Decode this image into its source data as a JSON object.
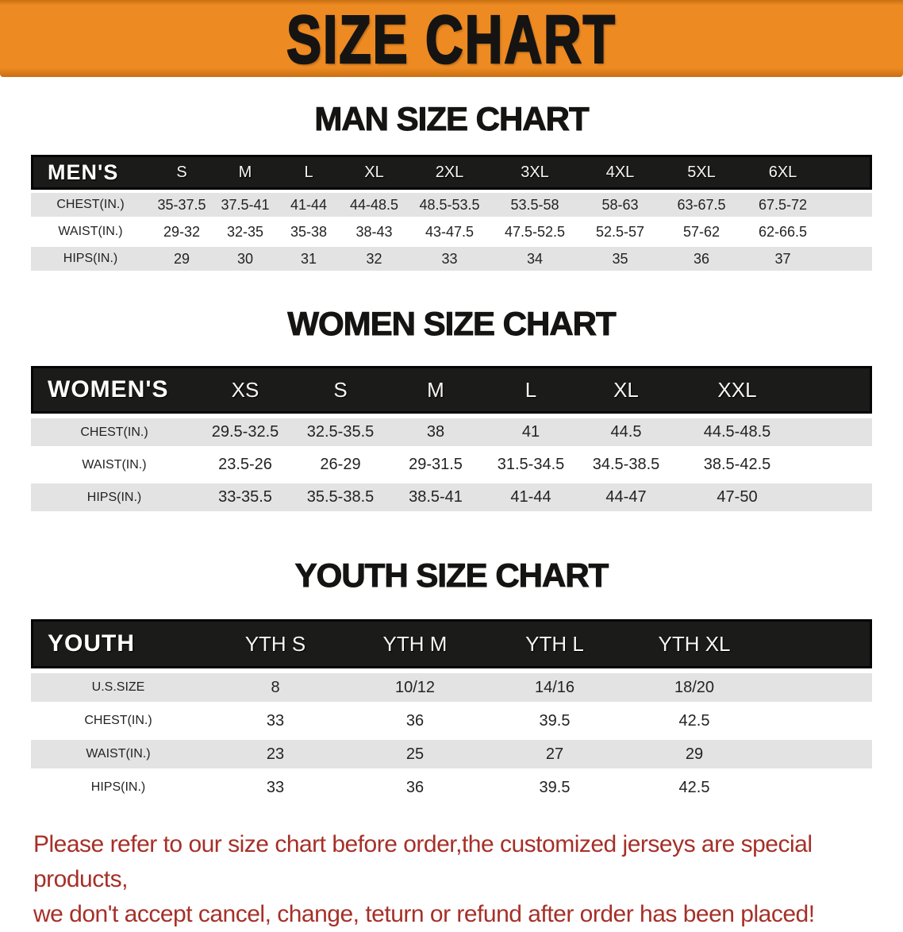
{
  "banner": {
    "title": "SIZE CHART"
  },
  "colors": {
    "banner_orange": "#ee8a22",
    "header_bar_black": "#1b1b19",
    "row_gray": "#e3e3e3",
    "disclaimer_red": "#a63028"
  },
  "sections": [
    {
      "heading": "MAN SIZE CHART",
      "label": "MEN'S",
      "columns": [
        "S",
        "M",
        "L",
        "XL",
        "2XL",
        "3XL",
        "4XL",
        "5XL",
        "6XL"
      ],
      "rows": [
        {
          "label": "CHEST(IN.)",
          "values": [
            "35-37.5",
            "37.5-41",
            "41-44",
            "44-48.5",
            "48.5-53.5",
            "53.5-58",
            "58-63",
            "63-67.5",
            "67.5-72"
          ]
        },
        {
          "label": "WAIST(IN.)",
          "values": [
            "29-32",
            "32-35",
            "35-38",
            "38-43",
            "43-47.5",
            "47.5-52.5",
            "52.5-57",
            "57-62",
            "62-66.5"
          ]
        },
        {
          "label": "HIPS(IN.)",
          "values": [
            "29",
            "30",
            "31",
            "32",
            "33",
            "34",
            "35",
            "36",
            "37"
          ]
        }
      ]
    },
    {
      "heading": "WOMEN SIZE CHART",
      "label": "WOMEN'S",
      "columns": [
        "XS",
        "S",
        "M",
        "L",
        "XL",
        "XXL"
      ],
      "rows": [
        {
          "label": "CHEST(IN.)",
          "values": [
            "29.5-32.5",
            "32.5-35.5",
            "38",
            "41",
            "44.5",
            "44.5-48.5"
          ]
        },
        {
          "label": "WAIST(IN.)",
          "values": [
            "23.5-26",
            "26-29",
            "29-31.5",
            "31.5-34.5",
            "34.5-38.5",
            "38.5-42.5"
          ]
        },
        {
          "label": "HIPS(IN.)",
          "values": [
            "33-35.5",
            "35.5-38.5",
            "38.5-41",
            "41-44",
            "44-47",
            "47-50"
          ]
        }
      ]
    },
    {
      "heading": "YOUTH SIZE CHART",
      "label": "YOUTH",
      "columns": [
        "YTH S",
        "YTH M",
        "YTH L",
        "YTH XL"
      ],
      "rows": [
        {
          "label": "U.S.SIZE",
          "values": [
            "8",
            "10/12",
            "14/16",
            "18/20"
          ]
        },
        {
          "label": "CHEST(IN.)",
          "values": [
            "33",
            "36",
            "39.5",
            "42.5"
          ]
        },
        {
          "label": "WAIST(IN.)",
          "values": [
            "23",
            "25",
            "27",
            "29"
          ]
        },
        {
          "label": "HIPS(IN.)",
          "values": [
            "33",
            "36",
            "39.5",
            "42.5"
          ]
        }
      ]
    }
  ],
  "disclaimer": {
    "line1": "Please refer to our size chart before order,the customized jerseys are special products,",
    "line2": "we don't accept cancel, change, teturn or refund after order has been placed!"
  }
}
